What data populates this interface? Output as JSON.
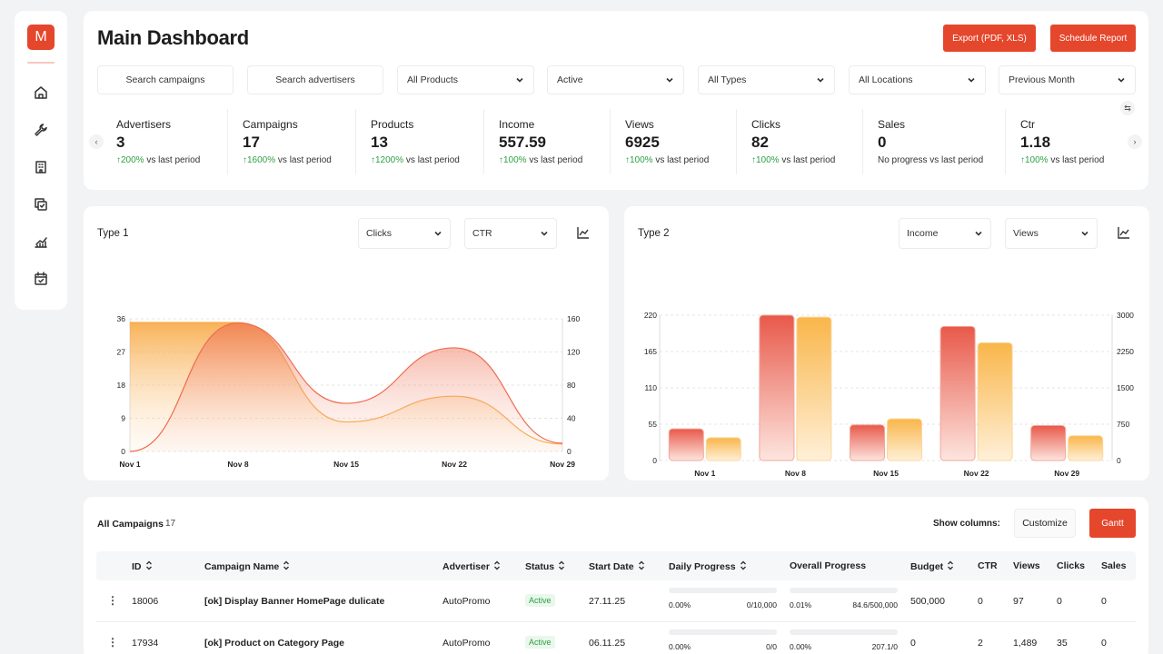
{
  "app": {
    "logo_letter": "M",
    "accent": "#e5472d"
  },
  "sidebar": {
    "icons": [
      "home-icon",
      "wrench-icon",
      "building-icon",
      "copy-icon",
      "chart-icon",
      "calendar-icon"
    ]
  },
  "header": {
    "title": "Main Dashboard",
    "export_label": "Export (PDF, XLS)",
    "schedule_label": "Schedule Report"
  },
  "filters": {
    "search_campaigns": "Search campaigns",
    "search_advertisers": "Search advertisers",
    "products": "All Products",
    "status": "Active",
    "types": "All Types",
    "locations": "All Locations",
    "period": "Previous Month"
  },
  "kpis": [
    {
      "label": "Advertisers",
      "value": "3",
      "pct": "↑200%",
      "suffix": " vs last period"
    },
    {
      "label": "Campaigns",
      "value": "17",
      "pct": "↑1600%",
      "suffix": " vs last period"
    },
    {
      "label": "Products",
      "value": "13",
      "pct": "↑1200%",
      "suffix": " vs last period"
    },
    {
      "label": "Income",
      "value": "557.59",
      "pct": "↑100%",
      "suffix": " vs last period"
    },
    {
      "label": "Views",
      "value": "6925",
      "pct": "↑100%",
      "suffix": " vs last period"
    },
    {
      "label": "Clicks",
      "value": "82",
      "pct": "↑100%",
      "suffix": " vs last period"
    },
    {
      "label": "Sales",
      "value": "0",
      "pct": "",
      "suffix": "No progress vs last period"
    },
    {
      "label": "Ctr",
      "value": "1.18",
      "pct": "↑100%",
      "suffix": " vs last period"
    }
  ],
  "chart1": {
    "title": "Type 1",
    "select1": "Clicks",
    "select2": "CTR"
  },
  "chart2": {
    "title": "Type 2",
    "select1": "Income",
    "select2": "Views"
  },
  "chart_data": [
    {
      "type": "area",
      "title": "Type 1",
      "x": [
        "Nov 1",
        "Nov 8",
        "Nov 15",
        "Nov 22",
        "Nov 29"
      ],
      "left_axis": {
        "ticks": [
          0,
          9,
          18,
          27,
          36
        ],
        "ylim": [
          0,
          36
        ]
      },
      "right_axis": {
        "ticks": [
          0,
          40,
          80,
          120,
          160
        ],
        "ylim": [
          0,
          160
        ]
      },
      "series": [
        {
          "name": "Clicks",
          "axis": "left",
          "values": [
            35,
            35,
            8,
            15,
            2
          ],
          "color": "#f7a53b"
        },
        {
          "name": "CTR",
          "axis": "right",
          "values": [
            0,
            155,
            58,
            125,
            10
          ],
          "color": "#ef6d4f"
        }
      ]
    },
    {
      "type": "bar",
      "title": "Type 2",
      "categories": [
        "Nov 1",
        "Nov 8",
        "Nov 15",
        "Nov 22",
        "Nov 29"
      ],
      "left_axis": {
        "ticks": [
          0,
          55,
          110,
          165,
          220
        ],
        "ylim": [
          0,
          220
        ]
      },
      "right_axis": {
        "ticks": [
          0,
          750,
          1500,
          2250,
          3000
        ],
        "ylim": [
          0,
          3000
        ]
      },
      "series": [
        {
          "name": "Income",
          "axis": "left",
          "values": [
            48,
            220,
            54,
            203,
            53
          ],
          "color": "#ee6a55"
        },
        {
          "name": "Views",
          "axis": "right",
          "values": [
            470,
            2960,
            860,
            2430,
            510
          ],
          "color": "#fbc45a"
        }
      ]
    }
  ],
  "table": {
    "title": "All Campaigns",
    "count": "17",
    "show_columns": "Show columns:",
    "customize": "Customize",
    "gantt": "Gantt",
    "columns": [
      "ID",
      "Campaign Name",
      "Advertiser",
      "Status",
      "Start Date",
      "Daily Progress",
      "Overall Progress",
      "Budget",
      "CTR",
      "Views",
      "Clicks",
      "Sales"
    ],
    "rows": [
      {
        "id": "18006",
        "name": "[ok] Display Banner HomePage dulicate",
        "advertiser": "AutoPromo",
        "status": "Active",
        "start": "27.11.25",
        "daily_l": "0.00%",
        "daily_r": "0/10,000",
        "daily_fill": 0,
        "overall_l": "0.01%",
        "overall_r": "84.6/500,000",
        "overall_fill": 0.0001,
        "budget": "500,000",
        "ctr": "0",
        "views": "97",
        "clicks": "0",
        "sales": "0"
      },
      {
        "id": "17934",
        "name": "[ok] Product on Category Page",
        "advertiser": "AutoPromo",
        "status": "Active",
        "start": "06.11.25",
        "daily_l": "0.00%",
        "daily_r": "0/0",
        "daily_fill": 0,
        "overall_l": "0.00%",
        "overall_r": "207.1/0",
        "overall_fill": 0,
        "budget": "0",
        "ctr": "2",
        "views": "1,489",
        "clicks": "35",
        "sales": "0"
      }
    ]
  }
}
